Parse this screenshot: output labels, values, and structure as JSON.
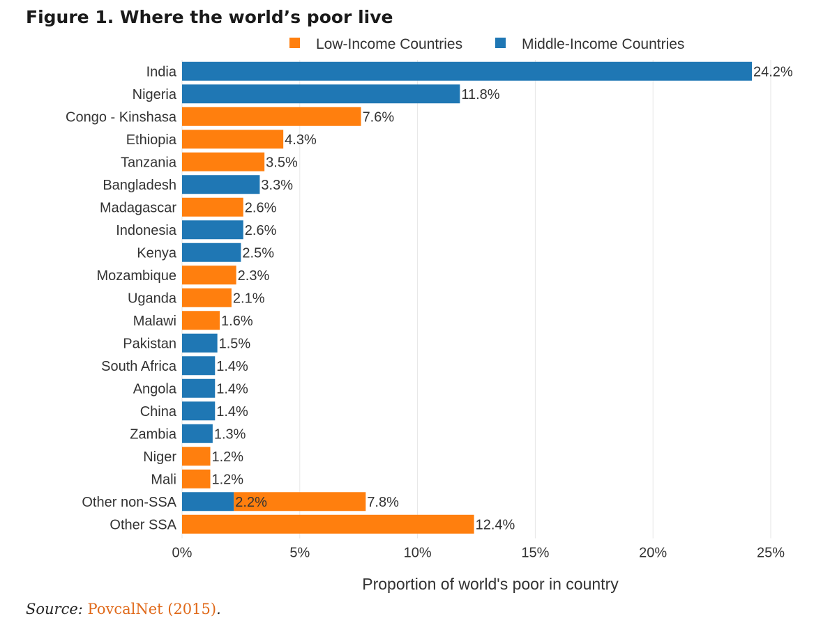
{
  "figure_title": "Figure 1. Where the world’s poor live",
  "source": {
    "prefix": "Source: ",
    "link_text": "PovcalNet (2015)",
    "suffix": "."
  },
  "chart_data": {
    "type": "bar",
    "orientation": "horizontal",
    "stacked": true,
    "title": "",
    "xlabel": "Proportion of world's poor in country",
    "ylabel": "",
    "xlim": [
      0,
      25
    ],
    "x_ticks": [
      0,
      5,
      10,
      15,
      20,
      25
    ],
    "x_tick_labels": [
      "0%",
      "5%",
      "10%",
      "15%",
      "20%",
      "25%"
    ],
    "grid": "vertical",
    "legend_position": "top",
    "categories": [
      "India",
      "Nigeria",
      "Congo - Kinshasa",
      "Ethiopia",
      "Tanzania",
      "Bangladesh",
      "Madagascar",
      "Indonesia",
      "Kenya",
      "Mozambique",
      "Uganda",
      "Malawi",
      "Pakistan",
      "South Africa",
      "Angola",
      "China",
      "Zambia",
      "Niger",
      "Mali",
      "Other non-SSA",
      "Other SSA"
    ],
    "series": [
      {
        "name": "Middle-Income Countries",
        "color": "#1f77b4",
        "values": [
          24.2,
          11.8,
          0,
          0,
          0,
          3.3,
          0,
          2.6,
          2.5,
          0,
          0,
          0,
          1.5,
          1.4,
          1.4,
          1.4,
          1.3,
          0,
          0,
          2.2,
          0
        ]
      },
      {
        "name": "Low-Income Countries",
        "color": "#ff7f0e",
        "values": [
          0,
          0,
          7.6,
          4.3,
          3.5,
          0,
          2.6,
          0,
          0,
          2.3,
          2.1,
          1.6,
          0,
          0,
          0,
          0,
          0,
          1.2,
          1.2,
          5.6,
          12.4
        ]
      }
    ],
    "legend_order": [
      "Low-Income Countries",
      "Middle-Income Countries"
    ],
    "end_labels": [
      "24.2%",
      "11.8%",
      "7.6%",
      "4.3%",
      "3.5%",
      "3.3%",
      "2.6%",
      "2.6%",
      "2.5%",
      "2.3%",
      "2.1%",
      "1.6%",
      "1.5%",
      "1.4%",
      "1.4%",
      "1.4%",
      "1.3%",
      "1.2%",
      "1.2%",
      "7.8%",
      "12.4%"
    ],
    "inner_labels": [
      {
        "category": "Other non-SSA",
        "value": 2.2,
        "text": "2.2%"
      }
    ]
  }
}
